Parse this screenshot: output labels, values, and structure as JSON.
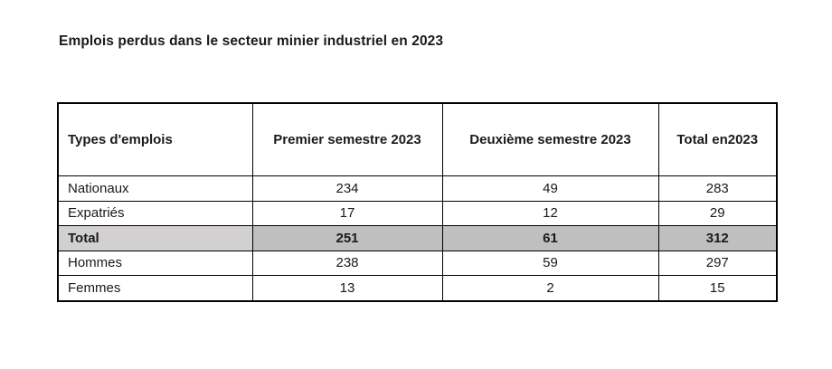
{
  "title": "Emplois perdus dans le secteur minier industriel en 2023",
  "table": {
    "columns": [
      "Types d'emplois",
      "Premier semestre 2023",
      "Deuxième semestre 2023",
      "Total en2023"
    ],
    "rows": [
      {
        "label": "Nationaux",
        "values": [
          "234",
          "49",
          "283"
        ]
      },
      {
        "label": "Expatriés",
        "values": [
          "17",
          "12",
          "29"
        ]
      },
      {
        "label": "Total",
        "values": [
          "251",
          "61",
          "312"
        ]
      },
      {
        "label": "Hommes",
        "values": [
          "238",
          "59",
          "297"
        ]
      },
      {
        "label": "Femmes",
        "values": [
          "13",
          "2",
          "15"
        ]
      }
    ],
    "colors": {
      "header_bg": "#bfbfbf",
      "total_label_bg": "#d2d0d0",
      "total_values_bg": "#bfbfbf",
      "border": "#000000",
      "text": "#1a1a1a",
      "page_bg": "#ffffff"
    }
  },
  "chart_data": {
    "type": "table",
    "title": "Emplois perdus dans le secteur minier industriel en 2023",
    "categories": [
      "Premier semestre 2023",
      "Deuxième semestre 2023",
      "Total en2023"
    ],
    "series": [
      {
        "name": "Nationaux",
        "values": [
          234,
          49,
          283
        ]
      },
      {
        "name": "Expatriés",
        "values": [
          17,
          12,
          29
        ]
      },
      {
        "name": "Total",
        "values": [
          251,
          61,
          312
        ]
      },
      {
        "name": "Hommes",
        "values": [
          238,
          59,
          297
        ]
      },
      {
        "name": "Femmes",
        "values": [
          13,
          2,
          15
        ]
      }
    ]
  }
}
